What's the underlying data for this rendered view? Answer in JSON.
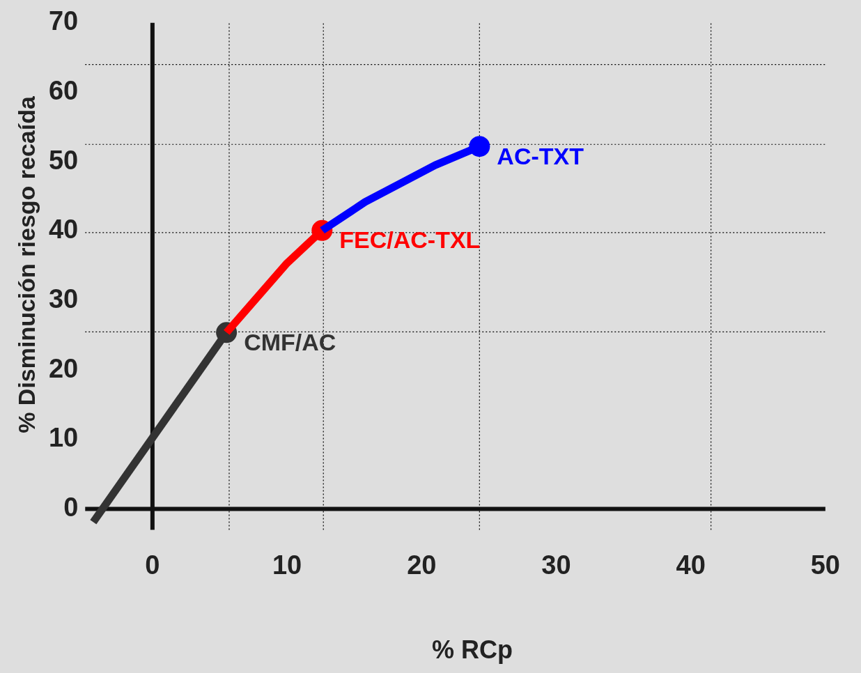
{
  "chart_data": {
    "type": "line",
    "xlabel": "% RCp",
    "ylabel": "% Disminución riesgo recaída",
    "xlim": [
      -5,
      50
    ],
    "ylim": [
      -3,
      70
    ],
    "xticks": [
      0,
      10,
      20,
      30,
      40,
      50
    ],
    "yticks": [
      0,
      10,
      20,
      30,
      40,
      50,
      60,
      70
    ],
    "grid": false,
    "legend": false,
    "marker": "none",
    "line_style": "solid",
    "series": [
      {
        "name": "CMF/AC",
        "color": "#333333",
        "x": [
          -4.4,
          5.5
        ],
        "values": [
          -1.9,
          25.4
        ]
      },
      {
        "name": "FEC/AC-TXL",
        "color": "#ff0000",
        "x": [
          5.5,
          10.0,
          12.6
        ],
        "values": [
          25.4,
          35.4,
          40.1
        ]
      },
      {
        "name": "AC-TXT",
        "color": "#0000ff",
        "x": [
          12.6,
          15.8,
          21.0,
          24.3
        ],
        "values": [
          40.1,
          44.2,
          49.5,
          52.2
        ]
      },
      {
        "type": "scatter",
        "marker": "circle",
        "colors": [
          "#333333",
          "#ff0000",
          "#0000ff"
        ],
        "x": [
          5.5,
          12.6,
          24.3
        ],
        "values": [
          25.4,
          40.1,
          52.2
        ]
      }
    ],
    "ref_lines": [
      {
        "axis": "x",
        "value": 5.7,
        "color": "#000000",
        "line_style": "dotted"
      },
      {
        "axis": "x",
        "value": 12.7,
        "color": "#000000",
        "line_style": "dotted"
      },
      {
        "axis": "x",
        "value": 24.3,
        "color": "#000000",
        "line_style": "dotted"
      },
      {
        "axis": "x",
        "value": 41.5,
        "color": "#000000",
        "line_style": "dotted"
      },
      {
        "axis": "y",
        "value": 25.5,
        "color": "#000000",
        "line_style": "dotted"
      },
      {
        "axis": "y",
        "value": 39.8,
        "color": "#000000",
        "line_style": "dotted"
      },
      {
        "axis": "y",
        "value": 52.5,
        "color": "#000000",
        "line_style": "dotted"
      },
      {
        "axis": "y",
        "value": 64,
        "color": "#000000",
        "line_style": "dotted"
      }
    ]
  }
}
